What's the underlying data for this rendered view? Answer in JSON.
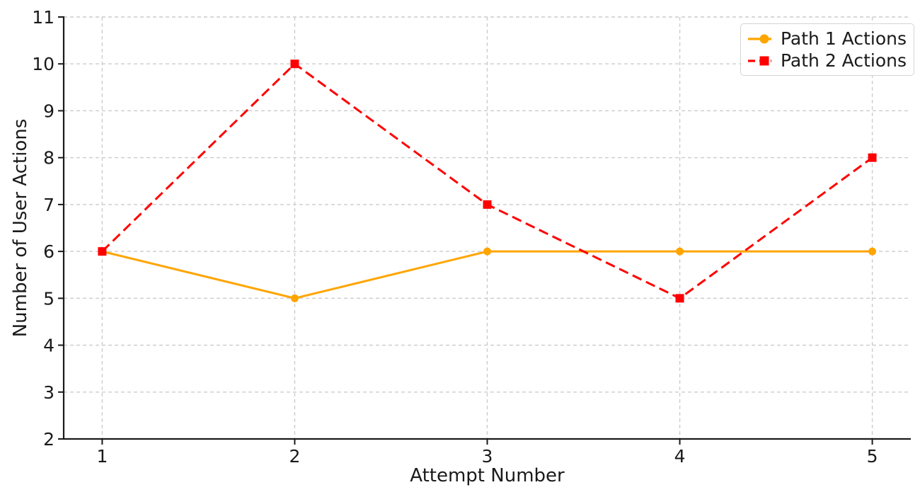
{
  "chart_data": {
    "type": "line",
    "title": "",
    "xlabel": "Attempt Number",
    "ylabel": "Number of User Actions",
    "x": [
      1,
      2,
      3,
      4,
      5
    ],
    "x_ticks": [
      "1",
      "2",
      "3",
      "4",
      "5"
    ],
    "y_ticks": [
      "2",
      "3",
      "4",
      "5",
      "6",
      "7",
      "8",
      "9",
      "10",
      "11"
    ],
    "xlim": [
      0.8,
      5.2
    ],
    "ylim": [
      2,
      11
    ],
    "grid": true,
    "grid_style": "dashed",
    "legend_position": "upper right",
    "series": [
      {
        "name": "Path 1 Actions",
        "values": [
          6,
          5,
          6,
          6,
          6
        ],
        "color": "#FFA500",
        "line_style": "solid",
        "marker": "circle"
      },
      {
        "name": "Path 2 Actions",
        "values": [
          6,
          10,
          7,
          5,
          8
        ],
        "color": "#FF0000",
        "line_style": "dashed",
        "marker": "square"
      }
    ]
  },
  "colors": {
    "background": "#ffffff",
    "grid": "#cccccc",
    "axis": "#1a1a1a",
    "text": "#1a1a1a",
    "legend_border": "#d4d4d4"
  }
}
